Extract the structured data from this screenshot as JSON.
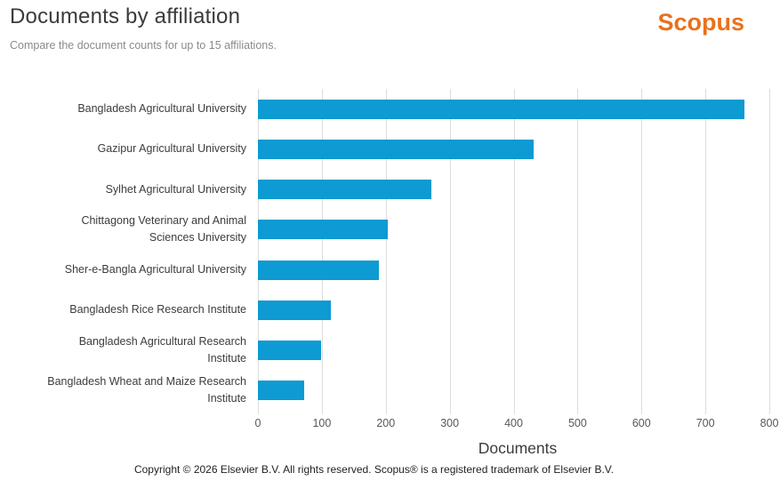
{
  "header": {
    "title": "Documents by affiliation",
    "subtitle": "Compare the document counts for up to 15 affiliations.",
    "brand": "Scopus"
  },
  "chart_data": {
    "type": "bar",
    "orientation": "horizontal",
    "title": "Documents by affiliation",
    "categories": [
      "Bangladesh Agricultural University",
      "Gazipur Agricultural University",
      "Sylhet Agricultural University",
      "Chittagong Veterinary and Animal Sciences University",
      "Sher-e-Bangla Agricultural University",
      "Bangladesh Rice Research Institute",
      "Bangladesh Agricultural Research Institute",
      "Bangladesh Wheat and Maize Research Institute"
    ],
    "values": [
      761,
      431,
      271,
      203,
      189,
      114,
      99,
      72
    ],
    "xlabel": "Documents",
    "ylabel": "",
    "x_ticks": [
      0,
      100,
      200,
      300,
      400,
      500,
      600,
      700,
      800
    ],
    "xlim": [
      0,
      816
    ],
    "grid": true,
    "legend": "none",
    "bar_color": "#0e9ad2",
    "gridline_color": "#dcdcdc"
  },
  "footer": {
    "copyright": "Copyright © 2026 Elsevier B.V. All rights reserved. Scopus® is a registered trademark of Elsevier B.V."
  }
}
